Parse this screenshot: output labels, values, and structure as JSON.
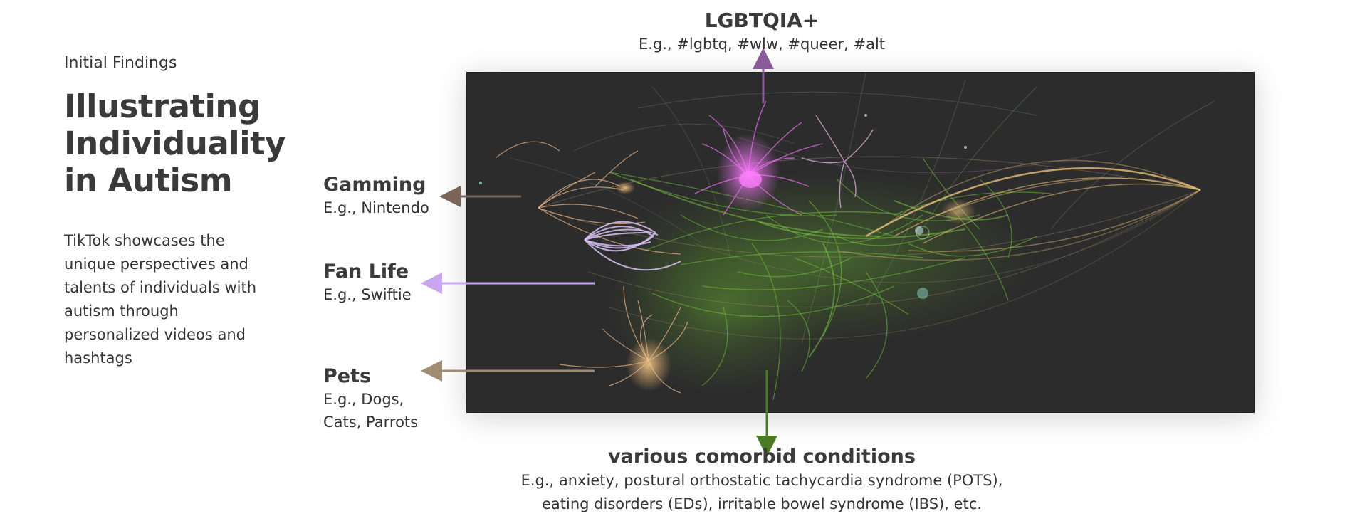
{
  "header": {
    "kicker": "Initial Findings",
    "title_lines": [
      "Illustrating",
      "Individuality",
      "in Autism"
    ]
  },
  "description_lines": [
    "TikTok showcases the",
    "unique perspectives and",
    "talents of individuals with",
    "autism through",
    "personalized videos and",
    "hashtags"
  ],
  "clusters": {
    "lgbtqia": {
      "label": "LGBTQIA+",
      "example": "E.g., #lgbtq, #wlw, #queer, #alt",
      "color": "#8a5a9a"
    },
    "gaming": {
      "label": "Gamming",
      "example": "E.g., Nintendo",
      "color": "#7a6658"
    },
    "fan_life": {
      "label": "Fan Life",
      "example": "E.g., Swiftie",
      "color": "#c9a6ef"
    },
    "pets": {
      "label": "Pets",
      "example_lines": [
        "E.g., Dogs,",
        "Cats, Parrots"
      ],
      "color": "#a08c74"
    },
    "comorbid": {
      "label": "various comorbid conditions",
      "example_lines": [
        "E.g.,  anxiety, postural orthostatic tachycardia syndrome (POTS),",
        "eating disorders (EDs), irritable bowel syndrome (IBS), etc."
      ],
      "color": "#4a7a22"
    }
  },
  "network": {
    "background": "#2c2c2c",
    "colors": {
      "green": "#6fbf3a",
      "pink": "#e06ee6",
      "gold": "#e9c07a",
      "lavender": "#d8c2f5",
      "peach": "#e8b48a",
      "light_pink": "#f0b8ec"
    }
  }
}
